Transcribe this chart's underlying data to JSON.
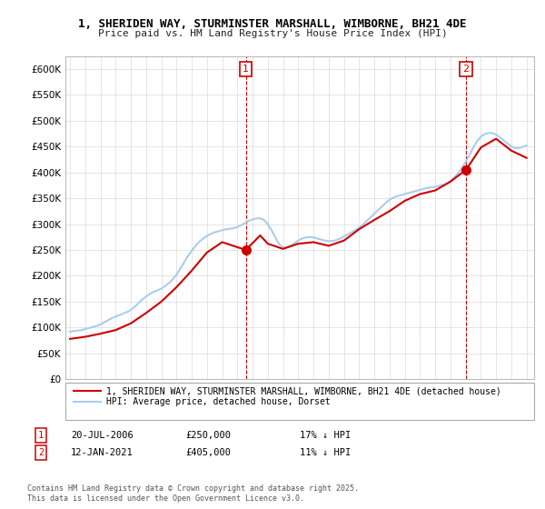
{
  "title_line1": "1, SHERIDEN WAY, STURMINSTER MARSHALL, WIMBORNE, BH21 4DE",
  "title_line2": "Price paid vs. HM Land Registry's House Price Index (HPI)",
  "ylim": [
    0,
    625000
  ],
  "yticks": [
    0,
    50000,
    100000,
    150000,
    200000,
    250000,
    300000,
    350000,
    400000,
    450000,
    500000,
    550000,
    600000
  ],
  "ytick_labels": [
    "£0",
    "£50K",
    "£100K",
    "£150K",
    "£200K",
    "£250K",
    "£300K",
    "£350K",
    "£400K",
    "£450K",
    "£500K",
    "£550K",
    "£600K"
  ],
  "hpi_color": "#aaccee",
  "price_color": "#cc0000",
  "marker_color": "#cc0000",
  "annotation_box_color": "#cc0000",
  "grid_color": "#e0e0e0",
  "bg_color": "#ffffff",
  "legend_label_price": "1, SHERIDEN WAY, STURMINSTER MARSHALL, WIMBORNE, BH21 4DE (detached house)",
  "legend_label_hpi": "HPI: Average price, detached house, Dorset",
  "purchase1_date": "20-JUL-2006",
  "purchase1_price": "£250,000",
  "purchase1_note": "17% ↓ HPI",
  "purchase2_date": "12-JAN-2021",
  "purchase2_price": "£405,000",
  "purchase2_note": "11% ↓ HPI",
  "copyright_text": "Contains HM Land Registry data © Crown copyright and database right 2025.\nThis data is licensed under the Open Government Licence v3.0.",
  "hpi_x": [
    1995.0,
    1995.25,
    1995.5,
    1995.75,
    1996.0,
    1996.25,
    1996.5,
    1996.75,
    1997.0,
    1997.25,
    1997.5,
    1997.75,
    1998.0,
    1998.25,
    1998.5,
    1998.75,
    1999.0,
    1999.25,
    1999.5,
    1999.75,
    2000.0,
    2000.25,
    2000.5,
    2000.75,
    2001.0,
    2001.25,
    2001.5,
    2001.75,
    2002.0,
    2002.25,
    2002.5,
    2002.75,
    2003.0,
    2003.25,
    2003.5,
    2003.75,
    2004.0,
    2004.25,
    2004.5,
    2004.75,
    2005.0,
    2005.25,
    2005.5,
    2005.75,
    2006.0,
    2006.25,
    2006.5,
    2006.75,
    2007.0,
    2007.25,
    2007.5,
    2007.75,
    2008.0,
    2008.25,
    2008.5,
    2008.75,
    2009.0,
    2009.25,
    2009.5,
    2009.75,
    2010.0,
    2010.25,
    2010.5,
    2010.75,
    2011.0,
    2011.25,
    2011.5,
    2011.75,
    2012.0,
    2012.25,
    2012.5,
    2012.75,
    2013.0,
    2013.25,
    2013.5,
    2013.75,
    2014.0,
    2014.25,
    2014.5,
    2014.75,
    2015.0,
    2015.25,
    2015.5,
    2015.75,
    2016.0,
    2016.25,
    2016.5,
    2016.75,
    2017.0,
    2017.25,
    2017.5,
    2017.75,
    2018.0,
    2018.25,
    2018.5,
    2018.75,
    2019.0,
    2019.25,
    2019.5,
    2019.75,
    2020.0,
    2020.25,
    2020.5,
    2020.75,
    2021.0,
    2021.25,
    2021.5,
    2021.75,
    2022.0,
    2022.25,
    2022.5,
    2022.75,
    2023.0,
    2023.25,
    2023.5,
    2023.75,
    2024.0,
    2024.25,
    2024.5,
    2024.75,
    2025.0
  ],
  "hpi_y": [
    92000,
    93000,
    94000,
    95000,
    97000,
    99000,
    101000,
    103000,
    106000,
    110000,
    114000,
    118000,
    121000,
    124000,
    127000,
    130000,
    134000,
    140000,
    147000,
    154000,
    160000,
    165000,
    169000,
    172000,
    175000,
    180000,
    186000,
    193000,
    202000,
    214000,
    226000,
    238000,
    248000,
    258000,
    266000,
    272000,
    277000,
    281000,
    284000,
    286000,
    288000,
    290000,
    291000,
    292000,
    294000,
    298000,
    302000,
    306000,
    309000,
    311000,
    311000,
    308000,
    300000,
    288000,
    274000,
    261000,
    255000,
    255000,
    258000,
    263000,
    268000,
    272000,
    274000,
    275000,
    274000,
    272000,
    270000,
    268000,
    267000,
    267000,
    269000,
    272000,
    276000,
    280000,
    284000,
    288000,
    293000,
    299000,
    306000,
    313000,
    320000,
    327000,
    334000,
    341000,
    347000,
    351000,
    354000,
    356000,
    358000,
    360000,
    362000,
    364000,
    366000,
    368000,
    370000,
    371000,
    372000,
    374000,
    376000,
    378000,
    383000,
    390000,
    398000,
    408000,
    420000,
    433000,
    448000,
    460000,
    469000,
    474000,
    476000,
    476000,
    473000,
    468000,
    462000,
    456000,
    450000,
    447000,
    447000,
    449000,
    452000
  ],
  "price_x": [
    1995.0,
    1996.0,
    1997.0,
    1998.0,
    1999.0,
    2000.0,
    2001.0,
    2002.0,
    2003.0,
    2004.0,
    2005.0,
    2006.55,
    2007.5,
    2008.0,
    2009.0,
    2010.0,
    2011.0,
    2012.0,
    2013.0,
    2014.0,
    2015.0,
    2016.0,
    2017.0,
    2018.0,
    2019.0,
    2020.0,
    2021.03,
    2022.0,
    2023.0,
    2024.0,
    2025.0
  ],
  "price_y": [
    78000,
    82000,
    88000,
    95000,
    108000,
    128000,
    150000,
    178000,
    210000,
    245000,
    265000,
    250000,
    278000,
    262000,
    252000,
    262000,
    265000,
    258000,
    268000,
    290000,
    308000,
    325000,
    345000,
    358000,
    365000,
    382000,
    405000,
    448000,
    465000,
    442000,
    428000
  ],
  "purchase1_x": 2006.55,
  "purchase1_y": 250000,
  "purchase2_x": 2021.03,
  "purchase2_y": 405000,
  "vline1_x": 2006.55,
  "vline2_x": 2021.03,
  "anno1_y": 600000,
  "anno2_y": 600000,
  "xlim_left": 1994.7,
  "xlim_right": 2025.5
}
